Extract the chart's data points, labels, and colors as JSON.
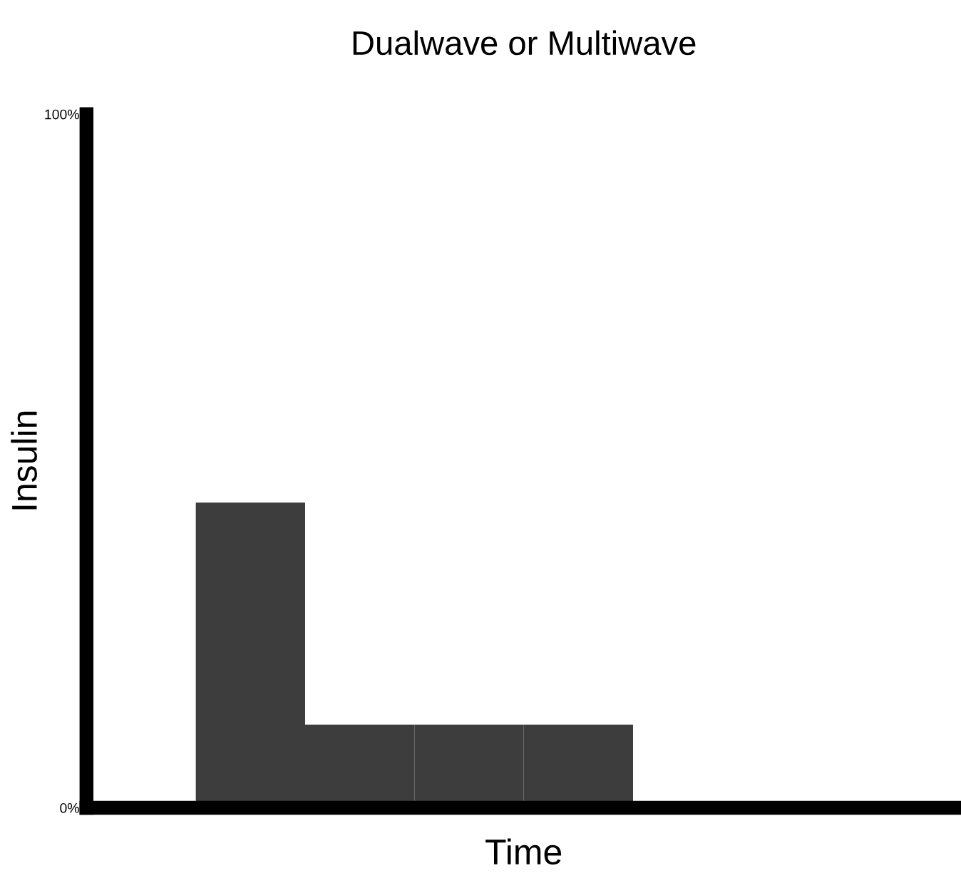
{
  "chart_data": {
    "type": "bar",
    "title": "Dualwave or Multiwave",
    "xlabel": "Time",
    "ylabel": "Insulin",
    "categories": [
      null,
      null,
      null,
      null,
      null,
      null,
      null,
      null
    ],
    "values": [
      null,
      44,
      12,
      12,
      12,
      null,
      null,
      null
    ],
    "color": "#3d3d3d",
    "ylim": [
      0,
      100
    ],
    "yticks": [
      {
        "value": 0,
        "label": "0%"
      },
      {
        "value": 100,
        "label": "100%"
      }
    ],
    "tick_labels": "y",
    "grid": false,
    "legend": false
  }
}
